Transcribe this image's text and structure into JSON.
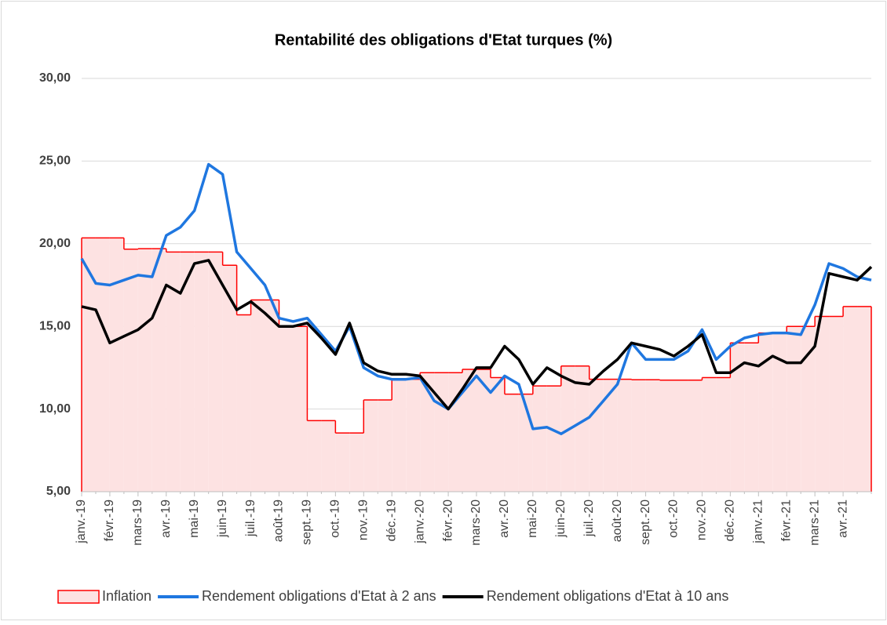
{
  "chart_data": {
    "type": "line",
    "title": "Rentabilité des obligations d'Etat turques (%)",
    "categories": [
      "janv.-19",
      null,
      "févr.-19",
      null,
      "mars-19",
      null,
      "avr.-19",
      null,
      "mai-19",
      null,
      "juin-19",
      null,
      "juil.-19",
      null,
      "août-19",
      null,
      "sept.-19",
      null,
      "oct.-19",
      null,
      "nov.-19",
      null,
      "déc.-19",
      null,
      "janv.-20",
      null,
      "févr.-20",
      null,
      "mars-20",
      null,
      "avr.-20",
      null,
      "mai-20",
      null,
      "juin-20",
      null,
      "juil.-20",
      null,
      "août-20",
      null,
      "sept.-20",
      null,
      "oct.-20",
      null,
      "nov.-20",
      null,
      "déc.-20",
      null,
      "janv.-21",
      null,
      "févr.-21",
      null,
      "mars-21",
      null,
      "avr.-21",
      null,
      null
    ],
    "series": [
      {
        "name": "Inflation",
        "style": "step-area",
        "color": "#ff0000",
        "fill": "#fde2e2",
        "values": [
          20.35,
          20.35,
          20.35,
          19.67,
          19.7,
          19.7,
          19.5,
          19.5,
          19.5,
          19.5,
          18.7,
          15.7,
          16.6,
          16.6,
          15.0,
          15.0,
          9.3,
          9.3,
          8.55,
          8.55,
          10.55,
          10.55,
          11.8,
          11.8,
          12.2,
          12.2,
          12.2,
          12.4,
          12.4,
          11.9,
          10.9,
          10.9,
          11.4,
          11.4,
          12.6,
          12.6,
          11.8,
          11.8,
          11.8,
          11.77,
          11.77,
          11.75,
          11.75,
          11.75,
          11.9,
          11.9,
          14.0,
          14.0,
          14.6,
          14.6,
          15.0,
          15.0,
          15.6,
          15.6,
          16.2,
          16.2,
          16.2
        ]
      },
      {
        "name": "Rendement obligations d'Etat à 2 ans",
        "style": "line",
        "color": "#1f77e0",
        "values": [
          19.1,
          17.6,
          17.5,
          17.8,
          18.1,
          18.0,
          20.5,
          21.0,
          22.0,
          24.8,
          24.2,
          19.5,
          18.5,
          17.5,
          15.5,
          15.3,
          15.5,
          14.5,
          13.5,
          15.0,
          12.5,
          12.0,
          11.8,
          11.8,
          11.9,
          10.5,
          10.0,
          11.0,
          12.0,
          11.0,
          12.0,
          11.5,
          8.8,
          8.9,
          8.5,
          9.0,
          9.5,
          10.5,
          11.5,
          14.0,
          13.0,
          13.0,
          13.0,
          13.5,
          14.8,
          13.0,
          13.8,
          14.3,
          14.5,
          14.6,
          14.6,
          14.5,
          16.3,
          18.8,
          18.5,
          18.0,
          17.8
        ]
      },
      {
        "name": "Rendement obligations d'Etat à 10 ans",
        "style": "line",
        "color": "#000000",
        "values": [
          16.2,
          16.0,
          14.0,
          14.4,
          14.8,
          15.5,
          17.5,
          17.0,
          18.8,
          19.0,
          17.5,
          16.0,
          16.5,
          15.8,
          15.0,
          15.0,
          15.2,
          14.3,
          13.3,
          15.2,
          12.8,
          12.3,
          12.1,
          12.1,
          12.0,
          11.0,
          10.0,
          11.2,
          12.5,
          12.5,
          13.8,
          13.0,
          11.5,
          12.5,
          12.0,
          11.6,
          11.5,
          12.3,
          13.0,
          14.0,
          13.8,
          13.6,
          13.2,
          13.8,
          14.5,
          12.2,
          12.2,
          12.8,
          12.6,
          13.2,
          12.8,
          12.8,
          13.8,
          18.2,
          18.0,
          17.8,
          18.6
        ]
      }
    ],
    "ylim": [
      5,
      30
    ],
    "yticks": [
      {
        "value": 5,
        "label": "5,00"
      },
      {
        "value": 10,
        "label": "10,00"
      },
      {
        "value": 15,
        "label": "15,00"
      },
      {
        "value": 20,
        "label": "20,00"
      },
      {
        "value": 25,
        "label": "25,00"
      },
      {
        "value": 30,
        "label": "30,00"
      }
    ],
    "grid": true,
    "legend": "bottom"
  }
}
